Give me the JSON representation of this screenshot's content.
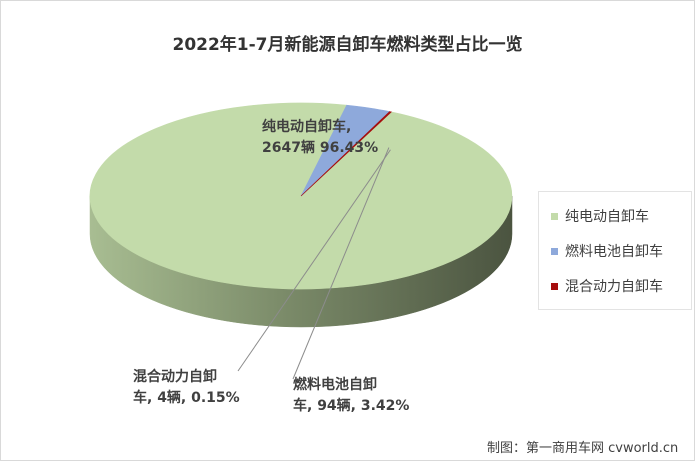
{
  "chart_data": {
    "type": "pie",
    "title": "2022年1-7月新能源自卸车燃料类型占比一览",
    "series": [
      {
        "name": "纯电动自卸车",
        "value": 2647,
        "percent": 96.43,
        "color": "#c3dbaa",
        "label_line1": "纯电动自卸车,",
        "label_line2": "2647辆 96.43%"
      },
      {
        "name": "燃料电池自卸车",
        "value": 94,
        "percent": 3.42,
        "color": "#8ea9db",
        "label_line1": "燃料电池自卸",
        "label_line2": "车, 94辆, 3.42%"
      },
      {
        "name": "混合动力自卸车",
        "value": 4,
        "percent": 0.15,
        "color": "#a60d0d",
        "label_line1": "混合动力自卸",
        "label_line2": "车, 4辆, 0.15%"
      }
    ],
    "legend_position": "right"
  },
  "credit": "制图：第一商用车网 cvworld.cn"
}
